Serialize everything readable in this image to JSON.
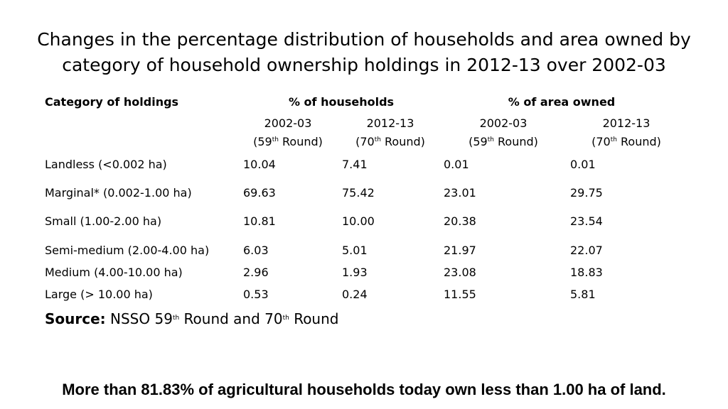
{
  "title_line1": "Changes in the percentage distribution of households and area owned by",
  "title_line2": "category of household ownership holdings in 2012-13 over 2002-03",
  "table": {
    "header_category": "Category of holdings",
    "header_households": "% of households",
    "header_area": "% of area owned",
    "years": [
      "2002-03",
      "2012-13",
      "2002-03",
      "2012-13"
    ],
    "rounds": [
      {
        "pre": "(59",
        "sup": "th",
        "post": " Round)"
      },
      {
        "pre": "(70",
        "sup": "th",
        "post": " Round)"
      },
      {
        "pre": "(59",
        "sup": "th",
        "post": " Round)"
      },
      {
        "pre": "(70",
        "sup": "th",
        "post": " Round)"
      }
    ],
    "rows": [
      {
        "category": "Landless  (<0.002 ha)",
        "values": [
          "10.04",
          "7.41",
          "0.01",
          "0.01"
        ]
      },
      {
        "category": "Marginal* (0.002-1.00 ha)",
        "values": [
          "69.63",
          "75.42",
          "23.01",
          "29.75"
        ]
      },
      {
        "category": "Small  (1.00-2.00 ha)",
        "values": [
          "10.81",
          "10.00",
          "20.38",
          "23.54"
        ]
      },
      {
        "category": "Semi-medium (2.00-4.00 ha)",
        "values": [
          "6.03",
          "5.01",
          "21.97",
          "22.07"
        ]
      },
      {
        "category": "Medium (4.00-10.00 ha)",
        "values": [
          "2.96",
          "1.93",
          "23.08",
          "18.83"
        ]
      },
      {
        "category": "Large  (> 10.00 ha)",
        "values": [
          "0.53",
          "0.24",
          "11.55",
          "5.81"
        ]
      }
    ]
  },
  "source": {
    "label": "Source:",
    "text_1": " NSSO 59",
    "sup_1": "th",
    "text_2": " Round and 70",
    "sup_2": "th",
    "text_3": " Round"
  },
  "footer": "More than 81.83% of agricultural households today own less than 1.00 ha of land."
}
